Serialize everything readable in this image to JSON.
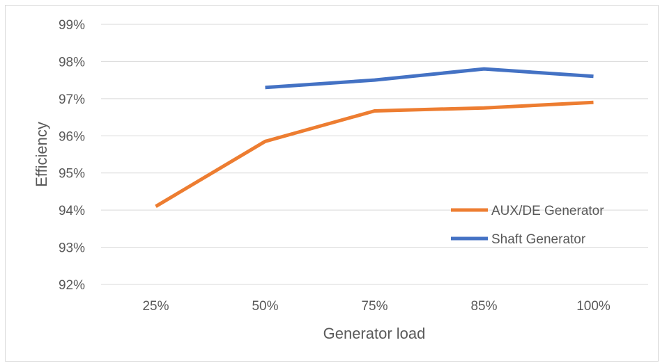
{
  "chart_data": {
    "type": "line",
    "title": "",
    "xlabel": "Generator load",
    "ylabel": "Efficiency",
    "categories": [
      "25%",
      "50%",
      "75%",
      "85%",
      "100%"
    ],
    "y_ticks": [
      "92%",
      "93%",
      "94%",
      "95%",
      "96%",
      "97%",
      "98%",
      "99%"
    ],
    "ylim": [
      92,
      99
    ],
    "grid": "horizontal",
    "legend_position": "right",
    "series": [
      {
        "name": "AUX/DE Generator",
        "color": "#ed7d31",
        "values": [
          94.1,
          95.85,
          96.67,
          96.75,
          96.9
        ]
      },
      {
        "name": "Shaft Generator",
        "color": "#4472c4",
        "values": [
          null,
          97.3,
          97.5,
          97.8,
          97.6
        ]
      }
    ]
  }
}
